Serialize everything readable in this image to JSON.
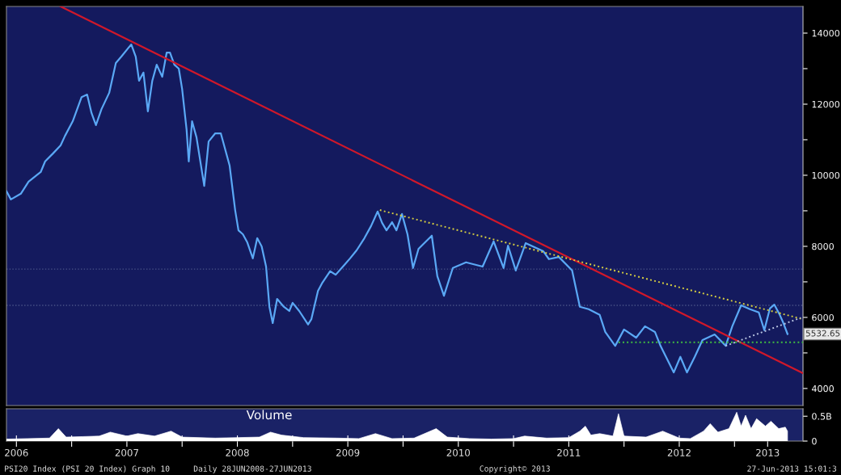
{
  "chart_data": [
    {
      "type": "line",
      "x": [
        2006.41,
        2006.45,
        2006.54,
        2006.61,
        2006.72,
        2006.76,
        2006.83,
        2006.9,
        2006.94,
        2007.01,
        2007.09,
        2007.14,
        2007.18,
        2007.22,
        2007.27,
        2007.34,
        2007.4,
        2007.45,
        2007.51,
        2007.54,
        2007.58,
        2007.61,
        2007.65,
        2007.69,
        2007.73,
        2007.77,
        2007.82,
        2007.86,
        2007.89,
        2007.93,
        2007.97,
        2008.0,
        2008.04,
        2008.06,
        2008.09,
        2008.13,
        2008.2,
        2008.24,
        2008.3,
        2008.35,
        2008.43,
        2008.48,
        2008.51,
        2008.55,
        2008.59,
        2008.64,
        2008.68,
        2008.72,
        2008.76,
        2008.79,
        2008.82,
        2008.86,
        2008.92,
        2008.97,
        2009.0,
        2009.06,
        2009.14,
        2009.17,
        2009.23,
        2009.27,
        2009.34,
        2009.39,
        2009.47,
        2009.52,
        2009.58,
        2009.65,
        2009.71,
        2009.77,
        2009.81,
        2009.85,
        2009.9,
        2009.94,
        2009.99,
        2010.04,
        2010.09,
        2010.14,
        2010.26,
        2010.31,
        2010.37,
        2010.45,
        2010.57,
        2010.72,
        2010.82,
        2010.91,
        2010.95,
        2011.02,
        2011.11,
        2011.27,
        2011.32,
        2011.41,
        2011.53,
        2011.6,
        2011.68,
        2011.78,
        2011.83,
        2011.92,
        2012.0,
        2012.11,
        2012.19,
        2012.28,
        2012.33,
        2012.38,
        2012.45,
        2012.51,
        2012.57,
        2012.64,
        2012.71,
        2012.82,
        2012.92,
        2012.98,
        2013.06,
        2013.14,
        2013.22,
        2013.27,
        2013.32,
        2013.36,
        2013.41,
        2013.44,
        2013.48
      ],
      "series": [
        {
          "color": "#5aa8f5",
          "values": [
            9550,
            9320,
            9480,
            9820,
            10090,
            10390,
            10610,
            10840,
            11110,
            11520,
            12200,
            12270,
            11750,
            11410,
            11860,
            12320,
            13160,
            13340,
            13570,
            13680,
            13340,
            12660,
            12890,
            11800,
            12660,
            13110,
            12770,
            13450,
            13450,
            13110,
            13000,
            12430,
            11300,
            10390,
            11520,
            11070,
            9700,
            10950,
            11180,
            11180,
            10270,
            9020,
            8450,
            8340,
            8110,
            7660,
            8230,
            8000,
            7430,
            6300,
            5840,
            6520,
            6300,
            6180,
            6410,
            6180,
            5800,
            5950,
            6750,
            6980,
            7300,
            7200,
            7480,
            7660,
            7890,
            8230,
            8570,
            8980,
            8660,
            8450,
            8680,
            8450,
            8910,
            8340,
            7390,
            7930,
            8300,
            7160,
            6610,
            7390,
            7550,
            7430,
            8140,
            7390,
            8020,
            7320,
            8090,
            7860,
            7640,
            7700,
            7320,
            6300,
            6230,
            6070,
            5590,
            5200,
            5660,
            5430,
            5750,
            5590,
            5200,
            4890,
            4450,
            4890,
            4450,
            4890,
            5360,
            5520,
            5200,
            5750,
            6340,
            6230,
            6140,
            5640,
            6250,
            6360,
            6070,
            5860,
            5532.65
          ]
        },
        {
          "type": "line",
          "color": "#d0182a",
          "x": [
            2006.9,
            2013.62
          ],
          "values": [
            14750,
            4430
          ]
        },
        {
          "type": "line",
          "color": "#d8d040",
          "line_style": "dotted",
          "x": [
            2009.79,
            2013.62
          ],
          "values": [
            9020,
            5950
          ]
        },
        {
          "type": "line",
          "color": "#40c040",
          "line_style": "dotted",
          "x": [
            2011.95,
            2013.62
          ],
          "values": [
            5300,
            5300
          ]
        },
        {
          "type": "line",
          "color": "#b8c4e0",
          "line_style": "dotted",
          "x": [
            2012.92,
            2013.6
          ],
          "values": [
            5200,
            5990
          ]
        }
      ],
      "ref_lines": [
        {
          "axis": "y",
          "value": 7360,
          "color": "#4a5488",
          "line_style": "dotted"
        },
        {
          "axis": "y",
          "value": 6340,
          "color": "#4a5488",
          "line_style": "dotted"
        }
      ],
      "annotations": [
        {
          "text": "5532.65",
          "x": 2013.48,
          "y": 5532.65
        }
      ],
      "xlim": [
        2006.41,
        2013.62
      ],
      "ylim": [
        3520,
        14750
      ],
      "yticks": [
        4000,
        {
          "value": 5000,
          "label": null
        },
        6000,
        {
          "value": 7000,
          "label": null
        },
        8000,
        {
          "value": 9000,
          "label": null
        },
        10000,
        {
          "value": 11000,
          "label": null
        },
        12000,
        {
          "value": 13000,
          "label": null
        },
        14000
      ],
      "tick_labels": "y",
      "grid": false,
      "legend": false
    },
    {
      "type": "area",
      "title": "Volume",
      "x": [
        2006.41,
        2006.6,
        2006.8,
        2006.88,
        2006.95,
        2007.1,
        2007.25,
        2007.35,
        2007.5,
        2007.6,
        2007.75,
        2007.9,
        2008.0,
        2008.3,
        2008.5,
        2008.7,
        2008.8,
        2008.9,
        2009.1,
        2009.4,
        2009.6,
        2009.75,
        2009.9,
        2010.1,
        2010.3,
        2010.4,
        2010.6,
        2010.8,
        2011.0,
        2011.1,
        2011.3,
        2011.5,
        2011.6,
        2011.65,
        2011.7,
        2011.78,
        2011.9,
        2011.95,
        2012.0,
        2012.2,
        2012.35,
        2012.5,
        2012.6,
        2012.72,
        2012.78,
        2012.85,
        2012.95,
        2013.02,
        2013.06,
        2013.1,
        2013.15,
        2013.2,
        2013.28,
        2013.33,
        2013.4,
        2013.46,
        2013.48
      ],
      "series": [
        {
          "color": "#ffffff",
          "values": [
            0.04,
            0.05,
            0.06,
            0.25,
            0.08,
            0.09,
            0.1,
            0.18,
            0.1,
            0.15,
            0.1,
            0.2,
            0.08,
            0.06,
            0.07,
            0.08,
            0.18,
            0.12,
            0.07,
            0.06,
            0.05,
            0.15,
            0.05,
            0.06,
            0.25,
            0.08,
            0.05,
            0.04,
            0.05,
            0.1,
            0.06,
            0.07,
            0.2,
            0.3,
            0.12,
            0.15,
            0.1,
            0.55,
            0.1,
            0.08,
            0.2,
            0.06,
            0.05,
            0.2,
            0.35,
            0.18,
            0.25,
            0.58,
            0.3,
            0.52,
            0.25,
            0.45,
            0.3,
            0.4,
            0.25,
            0.28,
            0.2
          ]
        }
      ],
      "xlim": [
        2006.41,
        2013.62
      ],
      "ylim": [
        0,
        0.65
      ],
      "yticks": [
        0,
        {
          "value": 0.5,
          "label": "0.5B"
        }
      ],
      "xticks": [
        {
          "value": 2006.5,
          "label": "2006"
        },
        {
          "value": 2007,
          "label": null
        },
        {
          "value": 2007.5,
          "label": "2007"
        },
        {
          "value": 2008,
          "label": null
        },
        {
          "value": 2008.5,
          "label": "2008"
        },
        {
          "value": 2009,
          "label": null
        },
        {
          "value": 2009.5,
          "label": "2009"
        },
        {
          "value": 2010,
          "label": null
        },
        {
          "value": 2010.5,
          "label": "2010"
        },
        {
          "value": 2011,
          "label": null
        },
        {
          "value": 2011.5,
          "label": "2011"
        },
        {
          "value": 2012,
          "label": null
        },
        {
          "value": 2012.5,
          "label": "2012"
        },
        {
          "value": 2013,
          "label": null
        },
        {
          "value": 2013.3,
          "label": "2013"
        }
      ],
      "annotations": [
        "PSI20 Index (PSI 20 Index) Graph 10",
        "Daily 28JUN2008-27JUN2013",
        "Copyright© 2013",
        "27-Jun-2013 15:01:3"
      ],
      "grid": false,
      "legend": false
    }
  ]
}
